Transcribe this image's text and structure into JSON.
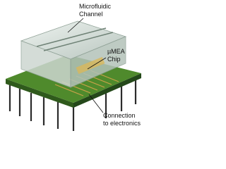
{
  "labels": [
    {
      "lines": [
        "Microfluidic",
        "Channel"
      ]
    },
    {
      "lines": [
        "µMEA",
        "Chip"
      ]
    },
    {
      "lines": [
        "Connection",
        "to electronics"
      ]
    }
  ]
}
